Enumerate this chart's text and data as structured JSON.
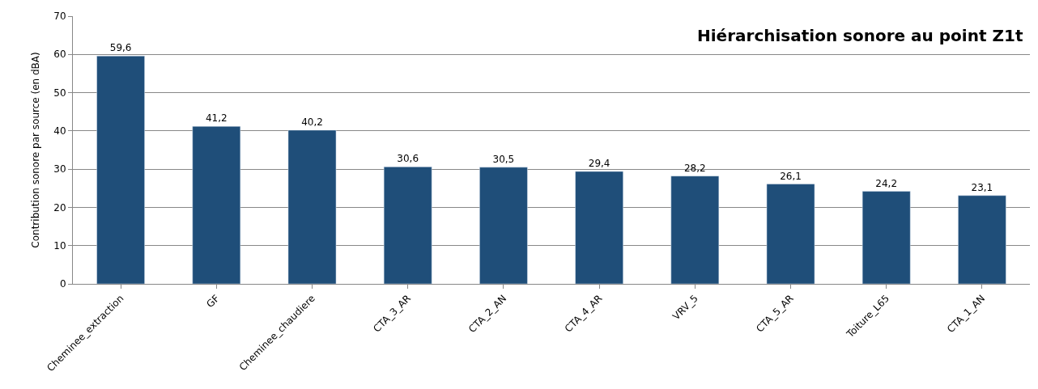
{
  "chart_data": {
    "type": "bar",
    "title": "Hiérarchisation sonore au point Z1t",
    "ylabel": "Contribution sonore par source (en dBA)",
    "categories": [
      "Cheminee_extraction",
      "GF",
      "Cheminee_chaudiere",
      "CTA_3_AR",
      "CTA_2_AN",
      "CTA_4_AR",
      "VRV_5",
      "CTA_5_AR",
      "Toiture_L65",
      "CTA_1_AN"
    ],
    "values": [
      59.6,
      41.2,
      40.2,
      30.6,
      30.5,
      29.4,
      28.2,
      26.1,
      24.2,
      23.1
    ],
    "value_labels": [
      "59,6",
      "41,2",
      "40,2",
      "30,6",
      "30,5",
      "29,4",
      "28,2",
      "26,1",
      "24,2",
      "23,1"
    ],
    "color": "#1f4e79",
    "ylim": [
      0,
      70
    ],
    "yticks": [
      0,
      10,
      20,
      30,
      40,
      50,
      60,
      70
    ],
    "grid": "y",
    "legend": false
  }
}
